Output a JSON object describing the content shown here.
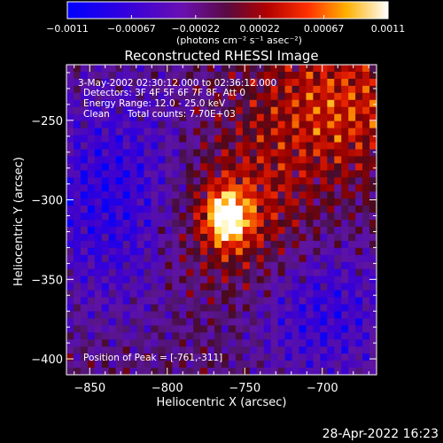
{
  "colorbar": {
    "ticks": [
      "-0.0011",
      "-0.00067",
      "-0.00022",
      "0.00022",
      "0.00067",
      "0.0011"
    ],
    "min": -0.0011,
    "max": 0.0011,
    "unit_label": "(photons cm⁻² s⁻¹ asec⁻²)",
    "colormap": "blue-purple-red-yellow-white"
  },
  "plot": {
    "title": "Reconstructed RHESSI Image",
    "info_lines": [
      "3-May-2002 02:30:12.000 to 02:36:12.000",
      "Detectors: 3F 4F 5F 6F 7F 8F, Att 0",
      "Energy Range: 12.0 - 25.0 keV",
      "Clean      Total counts: 7.70E+03"
    ],
    "peak_label": "Position of Peak = [-761,-311]",
    "timestamp": "28-Apr-2022 16:23"
  },
  "chart_data": {
    "type": "heatmap",
    "title": "Reconstructed RHESSI Image",
    "xlabel": "Heliocentric X (arcsec)",
    "ylabel": "Heliocentric Y (arcsec)",
    "xlim": [
      -865,
      -665
    ],
    "ylim": [
      -410,
      -215
    ],
    "x_ticks": [
      -850,
      -800,
      -750,
      -700
    ],
    "y_ticks": [
      -250,
      -300,
      -350,
      -400
    ],
    "x_tick_labels": [
      "−850",
      "−800",
      "−750",
      "−700"
    ],
    "y_tick_labels": [
      "−250",
      "−300",
      "−350",
      "−400"
    ],
    "peak": [
      -761,
      -311
    ],
    "value_range": [
      -0.0011,
      0.0011
    ]
  },
  "colors": {
    "background": "#000000",
    "text": "#ffffff"
  }
}
